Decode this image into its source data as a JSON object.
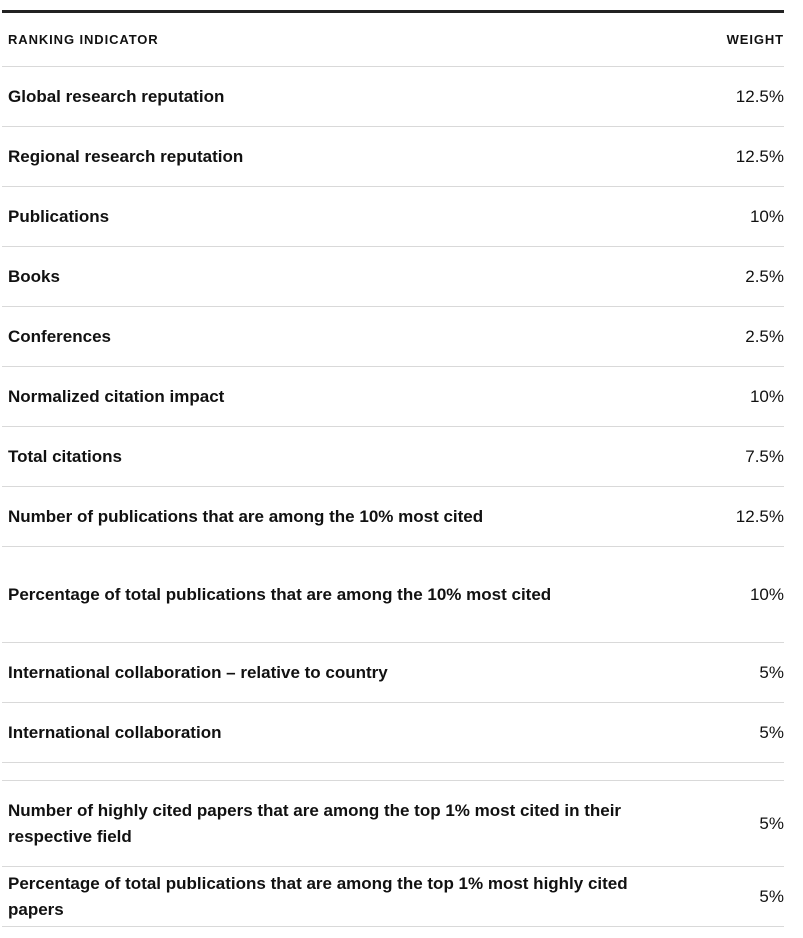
{
  "table": {
    "header": {
      "indicator": "RANKING INDICATOR",
      "weight": "WEIGHT"
    },
    "rows": [
      {
        "indicator": "Global research reputation",
        "weight": "12.5%"
      },
      {
        "indicator": "Regional research reputation",
        "weight": "12.5%"
      },
      {
        "indicator": "Publications",
        "weight": "10%"
      },
      {
        "indicator": "Books",
        "weight": "2.5%"
      },
      {
        "indicator": "Conferences",
        "weight": "2.5%"
      },
      {
        "indicator": "Normalized citation impact",
        "weight": "10%"
      },
      {
        "indicator": "Total citations",
        "weight": "7.5%"
      },
      {
        "indicator": "Number of publications that are among the 10% most cited",
        "weight": "12.5%"
      },
      {
        "indicator": "Percentage of total publications that are among the 10% most cited",
        "weight": "10%"
      },
      {
        "indicator": "International collaboration – relative to country",
        "weight": "5%"
      },
      {
        "indicator": "International collaboration",
        "weight": "5%"
      },
      {
        "indicator": "Number of highly cited papers that are among the top 1% most cited in their respective field",
        "weight": "5%"
      },
      {
        "indicator": "Percentage of total publications that are among the top 1% most highly cited papers",
        "weight": "5%"
      }
    ]
  }
}
